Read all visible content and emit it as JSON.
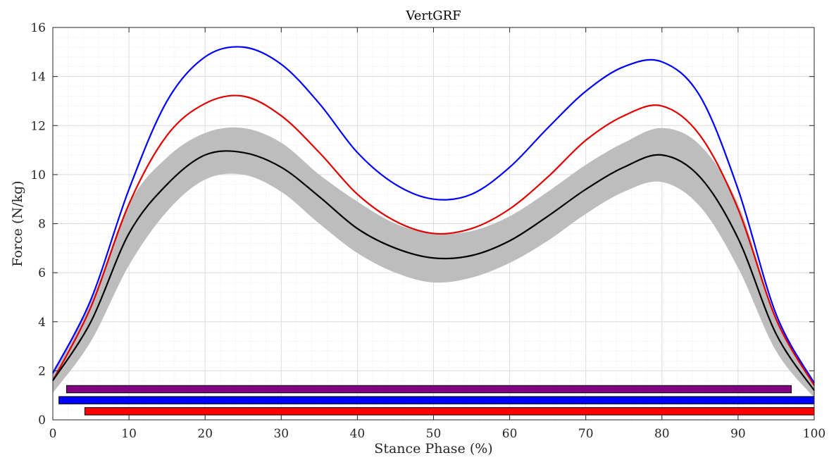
{
  "chart_data": {
    "type": "line",
    "title": "VertGRF",
    "xlabel": "Stance Phase (%)",
    "ylabel": "Force (N/kg)",
    "xlim": [
      0,
      100
    ],
    "ylim": [
      0,
      16
    ],
    "xticks": [
      0,
      10,
      20,
      30,
      40,
      50,
      60,
      70,
      80,
      90,
      100
    ],
    "yticks": [
      0,
      2,
      4,
      6,
      8,
      10,
      12,
      14,
      16
    ],
    "grid": true,
    "minor_grid": true,
    "x": [
      0,
      5,
      10,
      15,
      20,
      25,
      30,
      35,
      40,
      45,
      50,
      55,
      60,
      65,
      70,
      75,
      80,
      85,
      90,
      95,
      100
    ],
    "series": [
      {
        "color": "#0000ff",
        "values": [
          1.9,
          4.9,
          9.4,
          13.0,
          14.8,
          15.2,
          14.5,
          12.9,
          10.9,
          9.6,
          9.0,
          9.2,
          10.3,
          11.9,
          13.4,
          14.4,
          14.6,
          13.2,
          9.4,
          4.3,
          1.5
        ]
      },
      {
        "color": "#e00000",
        "values": [
          1.6,
          4.6,
          8.8,
          11.6,
          12.9,
          13.2,
          12.4,
          10.9,
          9.2,
          8.1,
          7.6,
          7.8,
          8.6,
          9.9,
          11.4,
          12.4,
          12.8,
          11.6,
          8.6,
          4.1,
          1.4
        ]
      },
      {
        "color": "#000000",
        "values": [
          1.6,
          4.0,
          7.6,
          9.6,
          10.8,
          10.9,
          10.3,
          9.1,
          7.8,
          7.0,
          6.6,
          6.7,
          7.3,
          8.3,
          9.4,
          10.3,
          10.8,
          9.9,
          7.4,
          3.5,
          1.2
        ]
      }
    ],
    "band": {
      "color": "#bdbdbd",
      "upper": [
        2.0,
        4.8,
        8.8,
        10.7,
        11.7,
        11.9,
        11.3,
        10.0,
        8.9,
        8.0,
        7.6,
        7.7,
        8.3,
        9.3,
        10.4,
        11.3,
        11.9,
        11.2,
        8.8,
        4.2,
        1.5
      ],
      "lower": [
        1.1,
        3.2,
        6.3,
        8.5,
        9.8,
        10.0,
        9.3,
        8.0,
        6.8,
        6.0,
        5.6,
        5.8,
        6.4,
        7.3,
        8.4,
        9.3,
        9.7,
        8.7,
        6.2,
        2.8,
        0.9
      ]
    },
    "bars": [
      {
        "color": "#800080",
        "x_start": 1.8,
        "x_end": 97.0,
        "y_bottom": 1.1,
        "y_top": 1.4
      },
      {
        "color": "#0000ff",
        "x_start": 0.8,
        "x_end": 100,
        "y_bottom": 0.65,
        "y_top": 0.95
      },
      {
        "color": "#ff0000",
        "x_start": 4.2,
        "x_end": 100,
        "y_bottom": 0.2,
        "y_top": 0.5
      }
    ]
  }
}
